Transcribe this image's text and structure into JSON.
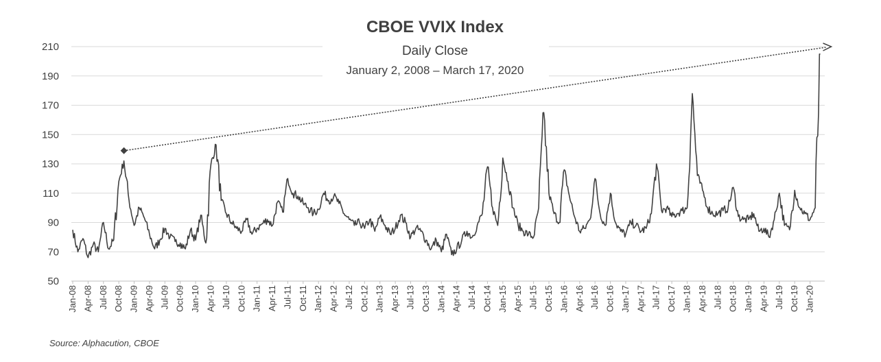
{
  "chart_data": {
    "type": "line",
    "title": "CBOE VVIX Index",
    "subtitle": "Daily Close",
    "date_range_label": "January 2, 2008 – March 17, 2020",
    "source": "Source: Alphacution, CBOE",
    "ylim": [
      50,
      210
    ],
    "yticks": [
      50,
      70,
      90,
      110,
      130,
      150,
      170,
      190,
      210
    ],
    "grid": "horizontal",
    "xticks": [
      "Jan-08",
      "Apr-08",
      "Jul-08",
      "Oct-08",
      "Jan-09",
      "Apr-09",
      "Jul-09",
      "Oct-09",
      "Jan-10",
      "Apr-10",
      "Jul-10",
      "Oct-10",
      "Jan-11",
      "Apr-11",
      "Jul-11",
      "Oct-11",
      "Jan-12",
      "Apr-12",
      "Jul-12",
      "Oct-12",
      "Jan-13",
      "Apr-13",
      "Jul-13",
      "Oct-13",
      "Jan-14",
      "Apr-14",
      "Jul-14",
      "Oct-14",
      "Jan-15",
      "Apr-15",
      "Jul-15",
      "Oct-15",
      "Jan-16",
      "Apr-16",
      "Jul-16",
      "Oct-16",
      "Jan-17",
      "Apr-17",
      "Jul-17",
      "Oct-17",
      "Jan-18",
      "Apr-18",
      "Jul-18",
      "Oct-18",
      "Jan-19",
      "Apr-19",
      "Jul-19",
      "Oct-19",
      "Jan-20"
    ],
    "series": [
      {
        "color": "#404040",
        "x": [
          "2008-01",
          "2008-02",
          "2008-03",
          "2008-04",
          "2008-05",
          "2008-06",
          "2008-07",
          "2008-08",
          "2008-09",
          "2008-10",
          "2008-11",
          "2008-12",
          "2009-01",
          "2009-02",
          "2009-03",
          "2009-04",
          "2009-05",
          "2009-06",
          "2009-07",
          "2009-08",
          "2009-09",
          "2009-10",
          "2009-11",
          "2009-12",
          "2010-01",
          "2010-02",
          "2010-03",
          "2010-04",
          "2010-05",
          "2010-06",
          "2010-07",
          "2010-08",
          "2010-09",
          "2010-10",
          "2010-11",
          "2010-12",
          "2011-01",
          "2011-02",
          "2011-03",
          "2011-04",
          "2011-05",
          "2011-06",
          "2011-07",
          "2011-08",
          "2011-09",
          "2011-10",
          "2011-11",
          "2011-12",
          "2012-01",
          "2012-02",
          "2012-03",
          "2012-04",
          "2012-05",
          "2012-06",
          "2012-07",
          "2012-08",
          "2012-09",
          "2012-10",
          "2012-11",
          "2012-12",
          "2013-01",
          "2013-02",
          "2013-03",
          "2013-04",
          "2013-05",
          "2013-06",
          "2013-07",
          "2013-08",
          "2013-09",
          "2013-10",
          "2013-11",
          "2013-12",
          "2014-01",
          "2014-02",
          "2014-03",
          "2014-04",
          "2014-05",
          "2014-06",
          "2014-07",
          "2014-08",
          "2014-09",
          "2014-10",
          "2014-11",
          "2014-12",
          "2015-01",
          "2015-02",
          "2015-03",
          "2015-04",
          "2015-05",
          "2015-06",
          "2015-07",
          "2015-08",
          "2015-09",
          "2015-10",
          "2015-11",
          "2015-12",
          "2016-01",
          "2016-02",
          "2016-03",
          "2016-04",
          "2016-05",
          "2016-06",
          "2016-07",
          "2016-08",
          "2016-09",
          "2016-10",
          "2016-11",
          "2016-12",
          "2017-01",
          "2017-02",
          "2017-03",
          "2017-04",
          "2017-05",
          "2017-06",
          "2017-07",
          "2017-08",
          "2017-09",
          "2017-10",
          "2017-11",
          "2017-12",
          "2018-01",
          "2018-02",
          "2018-03",
          "2018-04",
          "2018-05",
          "2018-06",
          "2018-07",
          "2018-08",
          "2018-09",
          "2018-10",
          "2018-11",
          "2018-12",
          "2019-01",
          "2019-02",
          "2019-03",
          "2019-04",
          "2019-05",
          "2019-06",
          "2019-07",
          "2019-08",
          "2019-09",
          "2019-10",
          "2019-11",
          "2019-12",
          "2020-01",
          "2020-02",
          "2020-03"
        ],
        "y": [
          85,
          70,
          79,
          66,
          75,
          70,
          90,
          72,
          78,
          118,
          132,
          105,
          88,
          100,
          93,
          82,
          72,
          78,
          86,
          80,
          77,
          76,
          72,
          85,
          78,
          95,
          76,
          130,
          143,
          105,
          96,
          90,
          86,
          84,
          92,
          82,
          86,
          89,
          92,
          88,
          104,
          97,
          120,
          110,
          108,
          103,
          100,
          96,
          99,
          110,
          105,
          108,
          103,
          96,
          92,
          88,
          90,
          86,
          92,
          84,
          94,
          88,
          82,
          86,
          95,
          90,
          80,
          86,
          84,
          78,
          72,
          78,
          70,
          82,
          68,
          72,
          78,
          84,
          80,
          88,
          96,
          128,
          100,
          88,
          134,
          118,
          100,
          88,
          84,
          82,
          80,
          100,
          165,
          110,
          96,
          90,
          126,
          108,
          94,
          84,
          86,
          92,
          120,
          96,
          88,
          110,
          90,
          84,
          82,
          90,
          88,
          84,
          86,
          96,
          130,
          98,
          100,
          94,
          96,
          98,
          100,
          178,
          122,
          112,
          100,
          96,
          96,
          98,
          100,
          114,
          94,
          92,
          92,
          96,
          84,
          86,
          80,
          92,
          110,
          88,
          85,
          112,
          100,
          96,
          92,
          100,
          205
        ]
      }
    ],
    "annotation": {
      "type": "dotted-arrow",
      "from": {
        "x": "2008-11",
        "y": 139
      },
      "to": {
        "x": "2020-03",
        "y": 210
      }
    }
  }
}
